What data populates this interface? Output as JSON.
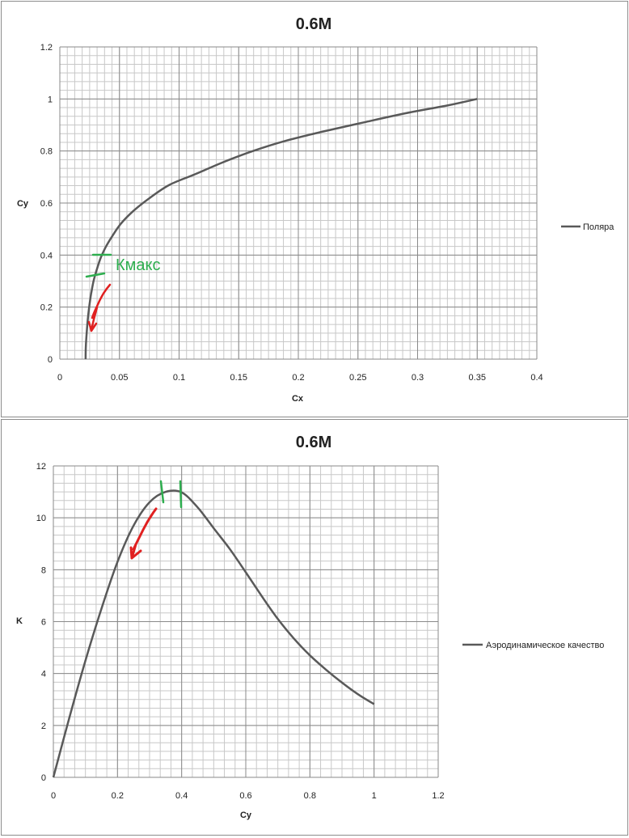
{
  "chart_data": [
    {
      "type": "line",
      "title": "0.6M",
      "xlabel": "Cx",
      "ylabel": "Cy",
      "xlim": [
        0,
        0.4
      ],
      "ylim": [
        0,
        1.2
      ],
      "x_ticks": [
        "0",
        "0.05",
        "0.1",
        "0.15",
        "0.2",
        "0.25",
        "0.3",
        "0.35",
        "0.4"
      ],
      "y_ticks": [
        "0",
        "0.2",
        "0.4",
        "0.6",
        "0.8",
        "1",
        "1.2"
      ],
      "grid": true,
      "legend_position": "right",
      "series": [
        {
          "name": "Поляра",
          "color": "#595959",
          "x": [
            0.0216,
            0.0218,
            0.0225,
            0.0234,
            0.0246,
            0.0262,
            0.0283,
            0.0314,
            0.0343,
            0.0384,
            0.0436,
            0.0511,
            0.0618,
            0.0755,
            0.092,
            0.113,
            0.136,
            0.162,
            0.19,
            0.221,
            0.255,
            0.29,
            0.325,
            0.35
          ],
          "y": [
            0.0,
            0.05,
            0.1,
            0.15,
            0.2,
            0.25,
            0.3,
            0.35,
            0.39,
            0.43,
            0.47,
            0.52,
            0.57,
            0.62,
            0.67,
            0.71,
            0.755,
            0.8,
            0.84,
            0.875,
            0.91,
            0.945,
            0.975,
            1.0
          ]
        }
      ],
      "annotations": [
        {
          "text": "Кмакс",
          "color": "#2eae4f"
        }
      ]
    },
    {
      "type": "line",
      "title": "0.6M",
      "xlabel": "Cy",
      "ylabel": "K",
      "xlim": [
        0,
        1.2
      ],
      "ylim": [
        0,
        12
      ],
      "x_ticks": [
        "0",
        "0.2",
        "0.4",
        "0.6",
        "0.8",
        "1",
        "1.2"
      ],
      "y_ticks": [
        "0",
        "2",
        "4",
        "6",
        "8",
        "10",
        "12"
      ],
      "grid": true,
      "legend_position": "right",
      "series": [
        {
          "name": "Аэродинамическое качество",
          "color": "#595959",
          "x": [
            0.0,
            0.05,
            0.1,
            0.15,
            0.2,
            0.25,
            0.3,
            0.35,
            0.4,
            0.45,
            0.5,
            0.55,
            0.6,
            0.65,
            0.7,
            0.75,
            0.8,
            0.85,
            0.9,
            0.95,
            1.0
          ],
          "y": [
            0.0,
            2.3,
            4.5,
            6.5,
            8.3,
            9.7,
            10.6,
            11.0,
            10.98,
            10.4,
            9.6,
            8.8,
            7.9,
            6.98,
            6.1,
            5.35,
            4.7,
            4.15,
            3.65,
            3.2,
            2.82
          ]
        }
      ]
    }
  ]
}
